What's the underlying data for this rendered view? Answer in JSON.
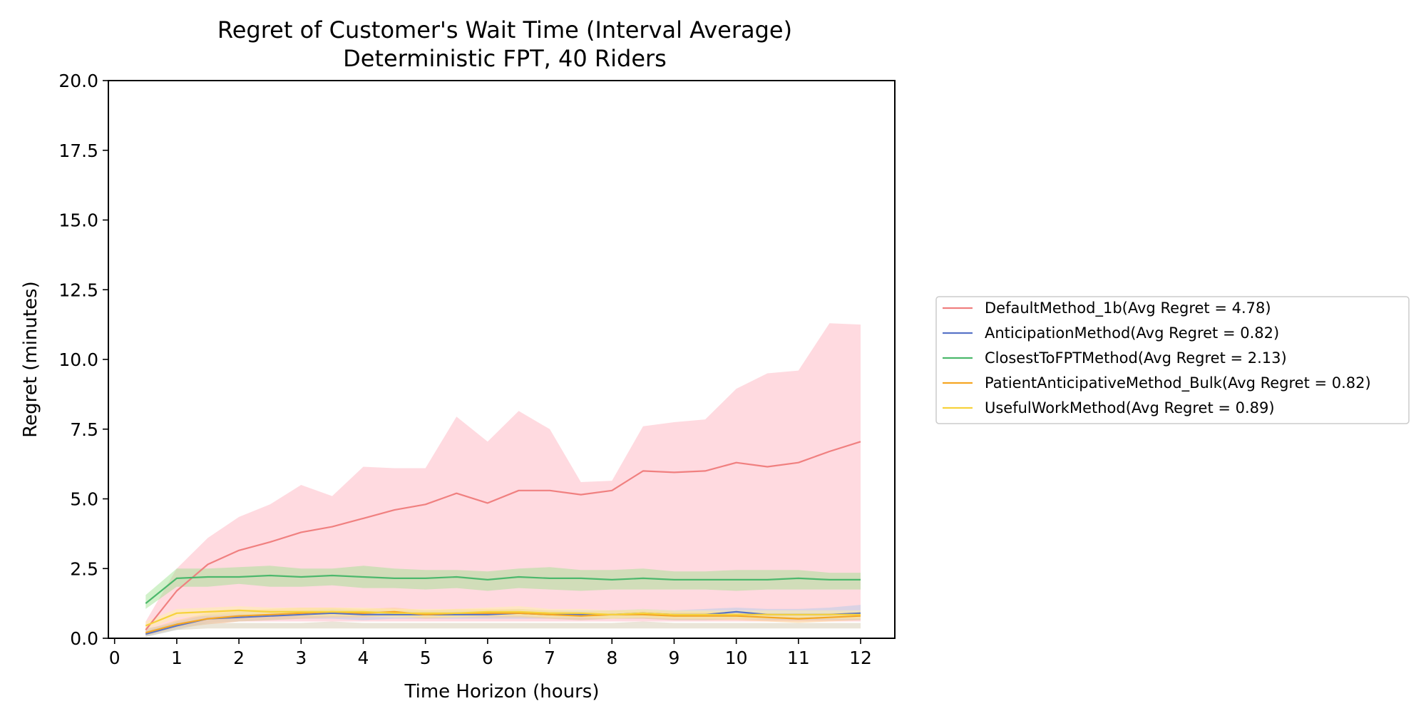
{
  "chart_data": {
    "type": "line",
    "title": "Regret of Customer's Wait Time (Interval Average)",
    "subtitle": "Deterministic FPT, 40 Riders",
    "xlabel": "Time Horizon (hours)",
    "ylabel": "Regret (minutes)",
    "xlim": [
      -0.1,
      12.55
    ],
    "ylim": [
      0,
      20
    ],
    "x_ticks": [
      0,
      1,
      2,
      3,
      4,
      5,
      6,
      7,
      8,
      9,
      10,
      11,
      12
    ],
    "x_tick_labels": [
      "0",
      "1",
      "2",
      "3",
      "4",
      "5",
      "6",
      "7",
      "8",
      "9",
      "10",
      "11",
      "12"
    ],
    "y_ticks": [
      0,
      2.5,
      5,
      7.5,
      10,
      12.5,
      15,
      17.5,
      20
    ],
    "y_tick_labels": [
      "0.0",
      "2.5",
      "5.0",
      "7.5",
      "10.0",
      "12.5",
      "15.0",
      "17.5",
      "20.0"
    ],
    "grid": false,
    "legend_position": "right",
    "x": [
      0.5,
      1,
      1.5,
      2,
      2.5,
      3,
      3.5,
      4,
      4.5,
      5,
      5.5,
      6,
      6.5,
      7,
      7.5,
      8,
      8.5,
      9,
      9.5,
      10,
      10.5,
      11,
      11.5,
      12
    ],
    "series": [
      {
        "name": "DefaultMethod_1b(Avg Regret = 4.78)",
        "color": "#f08080",
        "band_color": "#ffb6c1",
        "values": [
          0.3,
          1.7,
          2.65,
          3.15,
          3.45,
          3.8,
          4.0,
          4.3,
          4.6,
          4.8,
          5.2,
          4.85,
          5.3,
          5.3,
          5.15,
          5.3,
          6.0,
          5.95,
          6.0,
          6.3,
          6.15,
          6.3,
          6.7,
          7.05
        ],
        "upper": [
          0.6,
          2.5,
          3.6,
          4.35,
          4.8,
          5.5,
          5.1,
          6.15,
          6.1,
          6.1,
          7.95,
          7.05,
          8.15,
          7.5,
          5.6,
          5.65,
          7.6,
          7.75,
          7.85,
          8.95,
          9.5,
          9.6,
          11.3,
          11.25
        ],
        "lower": [
          0.1,
          0.4,
          0.5,
          0.6,
          0.6,
          0.6,
          0.6,
          0.6,
          0.6,
          0.6,
          0.6,
          0.6,
          0.6,
          0.6,
          0.6,
          0.6,
          0.6,
          0.6,
          0.6,
          0.6,
          0.6,
          0.6,
          0.6,
          0.6
        ]
      },
      {
        "name": "AnticipationMethod(Avg Regret = 0.82)",
        "color": "#5874c8",
        "band_color": "#aec7e8",
        "values": [
          0.15,
          0.45,
          0.7,
          0.75,
          0.8,
          0.85,
          0.9,
          0.85,
          0.85,
          0.85,
          0.85,
          0.85,
          0.9,
          0.85,
          0.85,
          0.85,
          0.9,
          0.85,
          0.85,
          0.95,
          0.85,
          0.85,
          0.85,
          0.9
        ],
        "upper": [
          0.25,
          0.6,
          0.85,
          0.95,
          1.0,
          1.0,
          1.05,
          1.0,
          1.0,
          1.0,
          1.0,
          1.0,
          1.05,
          1.0,
          1.0,
          1.0,
          1.05,
          1.0,
          1.05,
          1.1,
          1.05,
          1.05,
          1.1,
          1.2
        ],
        "lower": [
          0.05,
          0.3,
          0.55,
          0.6,
          0.65,
          0.7,
          0.7,
          0.65,
          0.7,
          0.7,
          0.7,
          0.7,
          0.7,
          0.7,
          0.65,
          0.7,
          0.7,
          0.65,
          0.65,
          0.7,
          0.65,
          0.65,
          0.65,
          0.65
        ]
      },
      {
        "name": "ClosestToFPTMethod(Avg Regret = 2.13)",
        "color": "#4cb86c",
        "band_color": "#98df8a",
        "values": [
          1.25,
          2.15,
          2.2,
          2.2,
          2.25,
          2.2,
          2.25,
          2.2,
          2.15,
          2.15,
          2.2,
          2.1,
          2.2,
          2.15,
          2.15,
          2.1,
          2.15,
          2.1,
          2.1,
          2.1,
          2.1,
          2.15,
          2.1,
          2.1
        ],
        "upper": [
          1.55,
          2.5,
          2.5,
          2.55,
          2.6,
          2.5,
          2.5,
          2.6,
          2.5,
          2.45,
          2.45,
          2.4,
          2.5,
          2.55,
          2.45,
          2.45,
          2.5,
          2.4,
          2.4,
          2.45,
          2.45,
          2.45,
          2.35,
          2.35
        ],
        "lower": [
          1.05,
          1.85,
          1.85,
          1.95,
          1.85,
          1.85,
          1.9,
          1.8,
          1.8,
          1.75,
          1.8,
          1.7,
          1.8,
          1.75,
          1.7,
          1.75,
          1.75,
          1.75,
          1.75,
          1.7,
          1.75,
          1.75,
          1.75,
          1.75
        ]
      },
      {
        "name": "PatientAnticipativeMethod_Bulk(Avg Regret = 0.82)",
        "color": "#f5a623",
        "band_color": "#ffcc80",
        "values": [
          0.2,
          0.5,
          0.7,
          0.8,
          0.85,
          0.9,
          0.95,
          0.9,
          0.95,
          0.85,
          0.9,
          0.9,
          0.9,
          0.85,
          0.8,
          0.85,
          0.85,
          0.8,
          0.8,
          0.8,
          0.75,
          0.7,
          0.75,
          0.8
        ],
        "upper": [
          0.3,
          0.65,
          0.9,
          1.0,
          1.05,
          1.1,
          1.1,
          1.05,
          1.1,
          1.0,
          1.05,
          1.05,
          1.05,
          1.0,
          0.95,
          1.0,
          1.0,
          0.95,
          0.95,
          0.95,
          0.9,
          0.85,
          0.9,
          0.95
        ],
        "lower": [
          0.1,
          0.35,
          0.5,
          0.6,
          0.65,
          0.7,
          0.75,
          0.75,
          0.8,
          0.7,
          0.75,
          0.75,
          0.75,
          0.7,
          0.65,
          0.7,
          0.7,
          0.65,
          0.65,
          0.65,
          0.6,
          0.55,
          0.6,
          0.65
        ]
      },
      {
        "name": "UsefulWorkMethod(Avg Regret = 0.89)",
        "color": "#f7d23c",
        "band_color": "#fff3a0",
        "values": [
          0.45,
          0.9,
          0.95,
          1.0,
          0.95,
          0.95,
          0.95,
          0.95,
          0.9,
          0.9,
          0.9,
          0.95,
          0.95,
          0.9,
          0.9,
          0.85,
          0.9,
          0.85,
          0.85,
          0.85,
          0.85,
          0.85,
          0.85,
          0.85
        ],
        "upper": [
          0.6,
          1.05,
          1.1,
          1.15,
          1.1,
          1.1,
          1.1,
          1.1,
          1.05,
          1.05,
          1.05,
          1.1,
          1.15,
          1.05,
          1.05,
          1.0,
          1.05,
          1.0,
          1.0,
          1.0,
          1.0,
          1.0,
          1.0,
          1.0
        ],
        "lower": [
          0.3,
          0.75,
          0.8,
          0.85,
          0.8,
          0.8,
          0.8,
          0.8,
          0.75,
          0.75,
          0.75,
          0.8,
          0.8,
          0.75,
          0.75,
          0.7,
          0.75,
          0.7,
          0.7,
          0.7,
          0.7,
          0.7,
          0.7,
          0.7
        ]
      }
    ],
    "baseline_band": {
      "color": "#d8cfb8",
      "upper": [
        0.35,
        0.55,
        0.55,
        0.55,
        0.55,
        0.55,
        0.6,
        0.55,
        0.55,
        0.55,
        0.55,
        0.55,
        0.55,
        0.55,
        0.55,
        0.55,
        0.6,
        0.55,
        0.55,
        0.55,
        0.55,
        0.55,
        0.55,
        0.55
      ],
      "lower": [
        0.05,
        0.3,
        0.35,
        0.35,
        0.35,
        0.35,
        0.35,
        0.35,
        0.35,
        0.35,
        0.35,
        0.35,
        0.35,
        0.35,
        0.35,
        0.35,
        0.35,
        0.35,
        0.35,
        0.35,
        0.35,
        0.35,
        0.35,
        0.35
      ]
    }
  }
}
